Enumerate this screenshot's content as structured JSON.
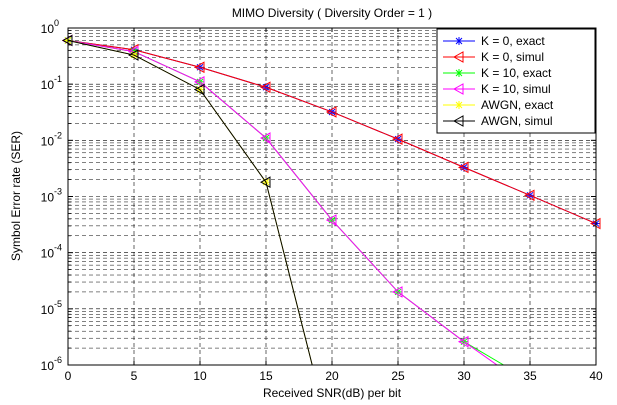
{
  "chart_data": {
    "type": "line",
    "title": "MIMO Diversity ( Diversity Order = 1 )",
    "xlabel": "Received SNR(dB) per bit",
    "ylabel": "Symbol Error rate (SER)",
    "xlim": [
      0,
      40
    ],
    "ylim": [
      1e-06,
      1
    ],
    "yscale": "log",
    "grid": true,
    "legend_position": "top-right",
    "x_ticks": [
      0,
      5,
      10,
      15,
      20,
      25,
      30,
      35,
      40
    ],
    "x_tick_labels": [
      "0",
      "5",
      "10",
      "15",
      "20",
      "25",
      "30",
      "35",
      "40"
    ],
    "y_ticks": [
      {
        "value": 1,
        "base": "10",
        "exp": "0"
      },
      {
        "value": 0.1,
        "base": "10",
        "exp": "-1"
      },
      {
        "value": 0.01,
        "base": "10",
        "exp": "-2"
      },
      {
        "value": 0.001,
        "base": "10",
        "exp": "-3"
      },
      {
        "value": 0.0001,
        "base": "10",
        "exp": "-4"
      },
      {
        "value": 1e-05,
        "base": "10",
        "exp": "-5"
      },
      {
        "value": 1e-06,
        "base": "10",
        "exp": "-6"
      }
    ],
    "series": [
      {
        "name": "K = 0, exact",
        "color": "#0000ff",
        "marker": "asterisk",
        "x": [
          0,
          5,
          10,
          15,
          20,
          25,
          30,
          35,
          40
        ],
        "y": [
          0.6,
          0.41,
          0.2,
          0.088,
          0.032,
          0.0105,
          0.0033,
          0.00105,
          0.00033
        ]
      },
      {
        "name": "K = 0, simul",
        "color": "#ff0000",
        "marker": "triangle-left",
        "x": [
          0,
          5,
          10,
          15,
          20,
          25,
          30,
          35,
          40
        ],
        "y": [
          0.6,
          0.41,
          0.2,
          0.088,
          0.032,
          0.0105,
          0.0033,
          0.00105,
          0.00033
        ]
      },
      {
        "name": "K = 10, exact",
        "color": "#00ff00",
        "marker": "asterisk",
        "x": [
          0,
          5,
          10,
          15,
          20,
          25,
          30,
          33
        ],
        "y": [
          0.6,
          0.38,
          0.11,
          0.011,
          0.00038,
          2e-05,
          2.6e-06,
          1e-06
        ]
      },
      {
        "name": "K = 10, simul",
        "color": "#ff00ff",
        "marker": "triangle-left",
        "x": [
          0,
          5,
          10,
          15,
          20,
          25,
          30,
          32.5
        ],
        "y": [
          0.6,
          0.38,
          0.11,
          0.011,
          0.00038,
          2e-05,
          2.6e-06,
          1e-06
        ]
      },
      {
        "name": "AWGN, exact",
        "color": "#ffff00",
        "marker": "asterisk",
        "x": [
          0,
          5,
          10,
          15,
          18.5
        ],
        "y": [
          0.6,
          0.33,
          0.08,
          0.0018,
          1e-06
        ]
      },
      {
        "name": "AWGN, simul",
        "color": "#000000",
        "marker": "triangle-left",
        "x": [
          0,
          5,
          10,
          15,
          18.5
        ],
        "y": [
          0.6,
          0.33,
          0.08,
          0.0018,
          1e-06
        ]
      }
    ]
  }
}
